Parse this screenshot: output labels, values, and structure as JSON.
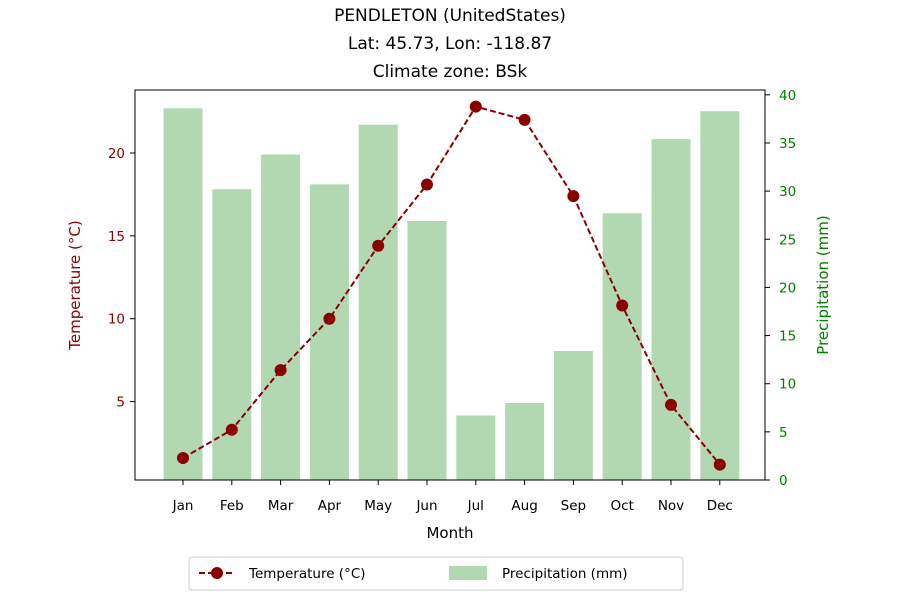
{
  "title_lines": [
    "PENDLETON (UnitedStates)",
    "Lat: 45.73, Lon: -118.87",
    "Climate zone: BSk"
  ],
  "colors": {
    "temperature": "#8b0000",
    "precipitation_bar": "#b2d8b2",
    "precip_axis": "#008000"
  },
  "chart_data": {
    "type": "bar",
    "title": "PENDLETON (UnitedStates)\nLat: 45.73, Lon: -118.87\nClimate zone: BSk",
    "xlabel": "Month",
    "ylabel_left": "Temperature (°C)",
    "ylabel_right": "Precipitation (mm)",
    "categories": [
      "Jan",
      "Feb",
      "Mar",
      "Apr",
      "May",
      "Jun",
      "Jul",
      "Aug",
      "Sep",
      "Oct",
      "Nov",
      "Dec"
    ],
    "series": [
      {
        "name": "Temperature (°C)",
        "type": "line",
        "axis": "left",
        "values": [
          1.6,
          3.3,
          6.9,
          10.0,
          14.4,
          18.1,
          22.8,
          22.0,
          17.4,
          10.8,
          4.8,
          1.2
        ]
      },
      {
        "name": "Precipitation (mm)",
        "type": "bar",
        "axis": "right",
        "values": [
          38.6,
          30.2,
          33.8,
          30.7,
          36.9,
          26.9,
          6.7,
          8.0,
          13.4,
          27.7,
          35.4,
          38.3
        ]
      }
    ],
    "ylim_left": [
      0.27,
      23.8
    ],
    "ylim_right": [
      0,
      40.5
    ],
    "yticks_left": [
      5,
      10,
      15,
      20
    ],
    "yticks_right": [
      0,
      5,
      10,
      15,
      20,
      25,
      30,
      35,
      40
    ],
    "grid": false,
    "legend_placement": "bottom-center"
  }
}
